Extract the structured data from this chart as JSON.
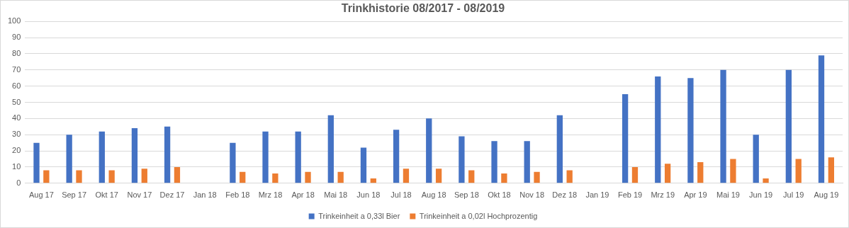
{
  "chart_data": {
    "type": "bar",
    "title": "Trinkhistorie 08/2017 - 08/2019",
    "categories": [
      "Aug 17",
      "Sep 17",
      "Okt 17",
      "Nov 17",
      "Dez 17",
      "Jan 18",
      "Feb 18",
      "Mrz 18",
      "Apr 18",
      "Mai 18",
      "Jun 18",
      "Jul 18",
      "Aug 18",
      "Sep 18",
      "Okt 18",
      "Nov 18",
      "Dez 18",
      "Jan 19",
      "Feb 19",
      "Mrz 19",
      "Apr 19",
      "Mai 19",
      "Jun 19",
      "Jul 19",
      "Aug 19"
    ],
    "series": [
      {
        "name": "Trinkeinheit a 0,33l Bier",
        "color": "#4472c4",
        "values": [
          25,
          30,
          32,
          34,
          35,
          null,
          25,
          32,
          32,
          42,
          22,
          33,
          40,
          29,
          26,
          26,
          42,
          null,
          55,
          66,
          65,
          70,
          30,
          70,
          79
        ]
      },
      {
        "name": "Trinkeinheit a 0,02l Hochprozentig",
        "color": "#ed7d31",
        "values": [
          8,
          8,
          8,
          9,
          10,
          null,
          7,
          6,
          7,
          7,
          3,
          9,
          9,
          8,
          6,
          7,
          8,
          null,
          10,
          12,
          13,
          15,
          3,
          15,
          16
        ]
      }
    ],
    "ylim": [
      0,
      100
    ],
    "yticks": [
      0,
      10,
      20,
      30,
      40,
      50,
      60,
      70,
      80,
      90,
      100
    ],
    "grid": "y",
    "legend": "bottom"
  }
}
